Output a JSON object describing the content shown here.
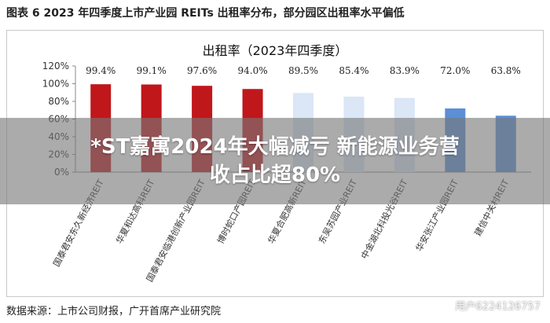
{
  "figure": {
    "caption": "图表 6 2023 年四季度上市产业园 REITs 出租率分布，部分园区出租率水平偏低",
    "source": "数据来源：上市公司财报，广开首席产业研究院"
  },
  "chart_data": {
    "type": "bar",
    "title": "出租率（2023年四季度）",
    "xlabel": "",
    "ylabel": "",
    "ylim": [
      0,
      120
    ],
    "yticks": [
      "0%",
      "20%",
      "40%",
      "60%",
      "80%",
      "100%",
      "120%"
    ],
    "grid": false,
    "categories": [
      "国泰君安东久新经济REIT",
      "华夏和达高科REIT",
      "国泰君安临港创新产业园REIT",
      "博时蛇口产园REIT",
      "华夏合肥高新REIT",
      "东吴苏园产业REIT",
      "中金湖北科投光谷REIT",
      "华安张江产业园REIT",
      "建信中关村REIT"
    ],
    "values": [
      99.4,
      99.1,
      97.6,
      94.0,
      89.5,
      85.4,
      83.9,
      72.0,
      63.8
    ],
    "data_labels": [
      "99.4%",
      "99.1%",
      "97.6%",
      "94.0%",
      "89.5%",
      "85.4%",
      "83.9%",
      "72.0%",
      "63.8%"
    ],
    "colors": [
      "#c0171b",
      "#c0171b",
      "#c0171b",
      "#c0171b",
      "#dbe6f6",
      "#dbe6f6",
      "#dbe6f6",
      "#5b8fd6",
      "#5b8fd6"
    ]
  },
  "overlay": {
    "headline_line1": "*ST嘉寓2024年大幅减亏 新能源业务营",
    "headline_line2": "收占比超80%",
    "watermark": "用户6224126757"
  }
}
